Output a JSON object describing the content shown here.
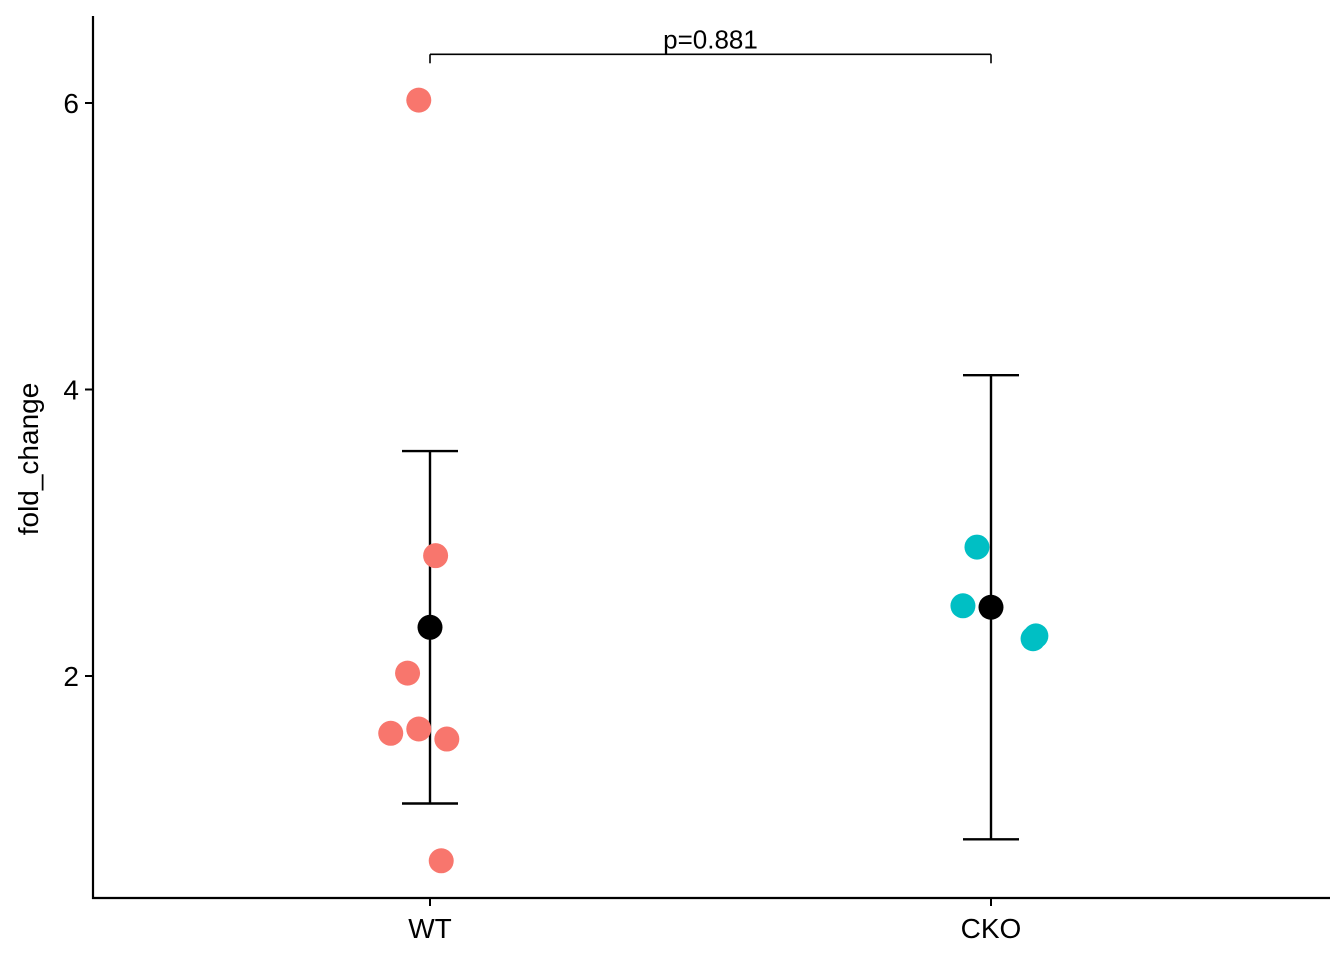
{
  "chart_data": {
    "type": "scatter",
    "title": "",
    "xlabel": "",
    "ylabel": "fold_change",
    "ylim": [
      0.4,
      6.6
    ],
    "yticks": [
      2,
      4,
      6
    ],
    "grid": false,
    "legend": "none",
    "categories": [
      "WT",
      "CKO"
    ],
    "groups": [
      {
        "category": "WT",
        "color": "#F8766D",
        "points": [
          {
            "jitter": -0.02,
            "y": 6.02
          },
          {
            "jitter": 0.01,
            "y": 2.84
          },
          {
            "jitter": -0.04,
            "y": 2.02
          },
          {
            "jitter": -0.07,
            "y": 1.6
          },
          {
            "jitter": -0.02,
            "y": 1.63
          },
          {
            "jitter": 0.03,
            "y": 1.56
          },
          {
            "jitter": 0.02,
            "y": 0.71
          }
        ],
        "mean": 2.34,
        "error": [
          1.11,
          3.57
        ]
      },
      {
        "category": "CKO",
        "color": "#00BFC4",
        "points": [
          {
            "jitter": -0.025,
            "y": 2.9
          },
          {
            "jitter": -0.05,
            "y": 2.49
          },
          {
            "jitter": 0.075,
            "y": 2.26
          },
          {
            "jitter": 0.08,
            "y": 2.28
          }
        ],
        "mean": 2.48,
        "error": [
          0.86,
          4.1
        ]
      }
    ],
    "mean_color": "#000000",
    "annotations": [
      {
        "text": "p=0.881",
        "from": "WT",
        "to": "CKO",
        "y": 6.34
      }
    ]
  }
}
